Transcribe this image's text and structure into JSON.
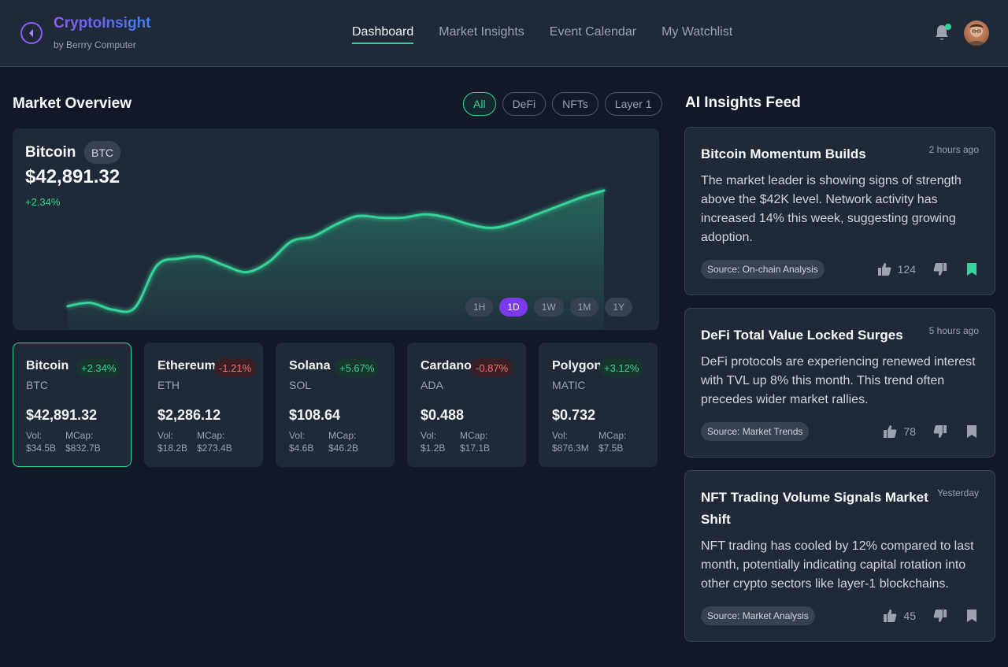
{
  "app": {
    "title": "CryptoInsight",
    "subtitle": "by Berrry Computer"
  },
  "nav": [
    {
      "label": "Dashboard",
      "active": true
    },
    {
      "label": "Market Insights",
      "active": false
    },
    {
      "label": "Event Calendar",
      "active": false
    },
    {
      "label": "My Watchlist",
      "active": false
    }
  ],
  "header_icons": {
    "notifications": "bell-icon",
    "notification_dot_color": "#34d399",
    "profile": "avatar"
  },
  "market": {
    "title": "Market Overview",
    "filters": [
      {
        "label": "All",
        "active": true
      },
      {
        "label": "DeFi",
        "active": false
      },
      {
        "label": "NFTs",
        "active": false
      },
      {
        "label": "Layer 1",
        "active": false
      }
    ]
  },
  "featured": {
    "name": "Bitcoin",
    "symbol": "BTC",
    "price": "$42,891.32",
    "change": "+2.34%",
    "ranges": [
      {
        "label": "1H",
        "active": false
      },
      {
        "label": "1D",
        "active": true
      },
      {
        "label": "1W",
        "active": false
      },
      {
        "label": "1M",
        "active": false
      },
      {
        "label": "1Y",
        "active": false
      }
    ]
  },
  "chart_data": {
    "type": "area",
    "x": [
      0,
      1,
      2,
      3,
      4,
      5,
      6,
      7,
      8,
      9,
      10,
      11,
      12,
      13,
      14,
      15,
      16,
      17,
      18,
      19,
      20,
      21,
      22,
      23,
      24
    ],
    "series": [
      {
        "values": [
          14,
          16,
          12,
          13,
          38,
          42,
          43,
          38,
          34,
          40,
          52,
          55,
          62,
          67,
          66,
          66,
          68,
          66,
          62,
          60,
          63,
          68,
          73,
          78,
          82
        ]
      }
    ],
    "ylim": [
      0,
      100
    ],
    "line_color": "#34d399",
    "grid": false
  },
  "coins": [
    {
      "name": "Bitcoin",
      "symbol": "BTC",
      "change": "+2.34%",
      "direction": "up",
      "price": "$42,891.32",
      "vol_label": "Vol:",
      "vol": "$34.5B",
      "mcap_label": "MCap:",
      "mcap": "$832.7B",
      "selected": true
    },
    {
      "name": "Ethereum",
      "symbol": "ETH",
      "change": "-1.21%",
      "direction": "down",
      "price": "$2,286.12",
      "vol_label": "Vol:",
      "vol": "$18.2B",
      "mcap_label": "MCap:",
      "mcap": "$273.4B",
      "selected": false
    },
    {
      "name": "Solana",
      "symbol": "SOL",
      "change": "+5.67%",
      "direction": "up",
      "price": "$108.64",
      "vol_label": "Vol:",
      "vol": "$4.6B",
      "mcap_label": "MCap:",
      "mcap": "$46.2B",
      "selected": false
    },
    {
      "name": "Cardano",
      "symbol": "ADA",
      "change": "-0.87%",
      "direction": "down",
      "price": "$0.488",
      "vol_label": "Vol:",
      "vol": "$1.2B",
      "mcap_label": "MCap:",
      "mcap": "$17.1B",
      "selected": false
    },
    {
      "name": "Polygon",
      "symbol": "MATIC",
      "change": "+3.12%",
      "direction": "up",
      "price": "$0.732",
      "vol_label": "Vol:",
      "vol": "$876.3M",
      "mcap_label": "MCap:",
      "mcap": "$7.5B",
      "selected": false
    }
  ],
  "insights": {
    "title": "AI Insights Feed",
    "items": [
      {
        "title": "Bitcoin Momentum Builds",
        "time": "2 hours ago",
        "body": "The market leader is showing signs of strength above the $42K level. Network activity has increased 14% this week, suggesting growing adoption.",
        "source": "Source: On-chain Analysis",
        "votes": "124",
        "bookmarked": true
      },
      {
        "title": "DeFi Total Value Locked Surges",
        "time": "5 hours ago",
        "body": "DeFi protocols are experiencing renewed interest with TVL up 8% this month. This trend often precedes wider market rallies.",
        "source": "Source: Market Trends",
        "votes": "78",
        "bookmarked": false
      },
      {
        "title": "NFT Trading Volume Signals Market Shift",
        "time": "Yesterday",
        "body": "NFT trading has cooled by 12% compared to last month, potentially indicating capital rotation into other crypto sectors like layer-1 blockchains.",
        "source": "Source: Market Analysis",
        "votes": "45",
        "bookmarked": false
      }
    ]
  },
  "colors": {
    "accent": "#34d399",
    "brand": "#8b5cf6",
    "negative": "#f87171",
    "range_active": "#7c3aed"
  }
}
